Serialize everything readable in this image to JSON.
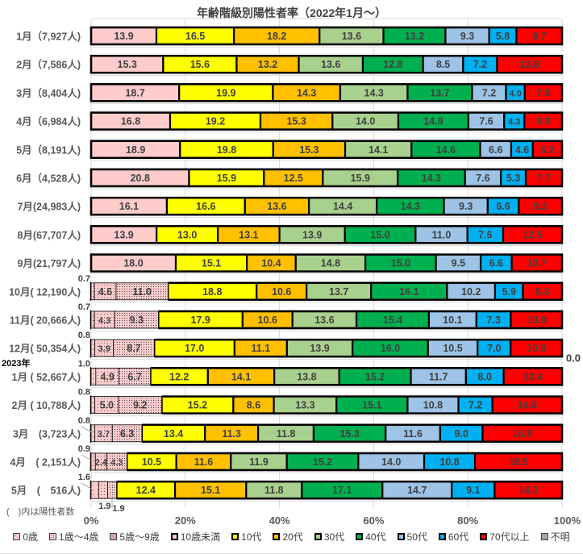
{
  "chart_data": {
    "type": "bar",
    "orientation": "horizontal",
    "stacked": "percent",
    "title": "年齢階級別陽性者率（2022年1月～）",
    "xlim": [
      0,
      100
    ],
    "x_ticks": [
      "0%",
      "20%",
      "40%",
      "60%",
      "80%",
      "100%"
    ],
    "grid": true,
    "legend_position": "bottom",
    "note": "(　)内は陽性者数",
    "year_label": "2023年",
    "extra_label": "0.0",
    "categories": [
      "1月（7,927人)",
      "2月（7,586人)",
      "3月（8,404人)",
      "4月（6,984人)",
      "5月（8,191人)",
      "6月（4,528人)",
      "7月(24,983人)",
      "8月(67,707人)",
      "9月(21,797人)",
      "10月( 12,190人)",
      "11月( 20,666人)",
      "12月( 50,354人)",
      "1月 ( 52,667人)",
      "2月 ( 10,788人)",
      "3月　(3,723人)",
      "4月　( 2,151人)",
      "5月　(　516人)"
    ],
    "series": [
      {
        "name": "0歳",
        "color": "#ffcccc",
        "pattern": "sparse-dots",
        "values": [
          null,
          null,
          null,
          null,
          null,
          null,
          null,
          null,
          null,
          0.7,
          0.7,
          0.8,
          1.0,
          0.8,
          0.8,
          0.9,
          1.6
        ]
      },
      {
        "name": "1歳～4歳",
        "color": "#ffcccc",
        "pattern": "dots",
        "values": [
          null,
          null,
          null,
          null,
          null,
          null,
          null,
          null,
          null,
          4.6,
          4.3,
          3.9,
          4.9,
          5.0,
          3.7,
          2.4,
          1.9
        ]
      },
      {
        "name": "5歳～9歳",
        "color": "#ffcccc",
        "pattern": "dense-dots",
        "values": [
          null,
          null,
          null,
          null,
          null,
          null,
          null,
          null,
          null,
          11.0,
          9.3,
          8.7,
          6.7,
          9.2,
          6.3,
          4.3,
          1.9
        ]
      },
      {
        "name": "10歳未満",
        "color": "#ffcccc",
        "pattern": "solid",
        "values": [
          13.9,
          15.3,
          18.7,
          16.8,
          18.9,
          20.8,
          16.1,
          13.9,
          18.0,
          null,
          null,
          null,
          null,
          null,
          null,
          null,
          null
        ]
      },
      {
        "name": "10代",
        "color": "#ffff00",
        "values": [
          16.5,
          15.6,
          19.9,
          19.2,
          19.8,
          15.9,
          16.6,
          13.0,
          15.1,
          18.8,
          17.9,
          17.0,
          12.2,
          15.2,
          13.4,
          10.5,
          12.4
        ]
      },
      {
        "name": "20代",
        "color": "#ffc000",
        "values": [
          18.2,
          13.2,
          14.3,
          15.3,
          15.3,
          12.5,
          13.6,
          13.1,
          10.4,
          10.6,
          10.6,
          11.1,
          14.1,
          8.6,
          11.3,
          11.6,
          15.1
        ]
      },
      {
        "name": "30代",
        "color": "#a9d18e",
        "values": [
          13.6,
          13.6,
          14.3,
          14.0,
          14.1,
          15.9,
          14.4,
          13.9,
          14.8,
          13.7,
          13.6,
          13.9,
          13.8,
          13.3,
          11.8,
          11.9,
          11.8
        ]
      },
      {
        "name": "40代",
        "color": "#00b050",
        "values": [
          13.2,
          12.8,
          13.7,
          14.9,
          14.6,
          14.3,
          14.3,
          15.0,
          15.0,
          16.1,
          15.4,
          16.0,
          15.2,
          15.1,
          15.3,
          15.2,
          17.1
        ]
      },
      {
        "name": "50代",
        "color": "#9dc3e6",
        "values": [
          9.3,
          8.5,
          7.2,
          7.6,
          6.6,
          7.6,
          9.3,
          11.0,
          9.5,
          10.2,
          10.1,
          10.5,
          11.7,
          10.8,
          11.6,
          14.0,
          14.7
        ]
      },
      {
        "name": "60代",
        "color": "#00b0f0",
        "values": [
          5.8,
          7.2,
          4.0,
          4.3,
          4.6,
          5.3,
          6.6,
          7.6,
          6.6,
          5.9,
          7.3,
          7.0,
          8.0,
          7.2,
          9.0,
          10.8,
          9.1
        ]
      },
      {
        "name": "70代以上",
        "color": "#ff0000",
        "values": [
          9.7,
          13.8,
          7.9,
          8.0,
          6.2,
          7.7,
          9.2,
          12.5,
          10.7,
          8.3,
          10.9,
          10.9,
          12.4,
          14.8,
          16.9,
          18.5,
          14.3
        ]
      },
      {
        "name": "不明",
        "color": "#a6a6a6",
        "values": [
          null,
          null,
          null,
          null,
          null,
          null,
          null,
          null,
          null,
          null,
          null,
          null,
          null,
          null,
          null,
          null,
          null
        ]
      }
    ]
  }
}
